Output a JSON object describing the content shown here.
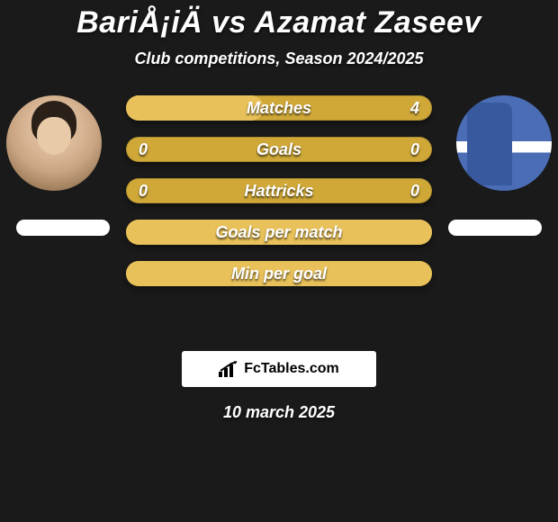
{
  "header": {
    "title": "BariÅ¡iÄ vs Azamat Zaseev",
    "title_fontsize": 34,
    "title_color": "#ffffff",
    "subtitle": "Club competitions, Season 2024/2025",
    "subtitle_fontsize": 18,
    "subtitle_color": "#ffffff"
  },
  "background_color": "#1a1a1a",
  "players": {
    "left": {
      "avatar_kind": "photo",
      "platform_color": "#ffffff"
    },
    "right": {
      "avatar_kind": "facebook-logo",
      "platform_color": "#ffffff"
    }
  },
  "bars": {
    "track_color": "#cfa838",
    "fill_color": "#e8c15a",
    "label_fontsize": 18,
    "value_fontsize": 18,
    "height": 28,
    "gap": 18,
    "items": [
      {
        "label": "Matches",
        "left": "",
        "right": "4",
        "fill_ratio": 0.45
      },
      {
        "label": "Goals",
        "left": "0",
        "right": "0",
        "fill_ratio": 0.0
      },
      {
        "label": "Hattricks",
        "left": "0",
        "right": "0",
        "fill_ratio": 0.0
      },
      {
        "label": "Goals per match",
        "left": "",
        "right": "",
        "fill_ratio": 1.0
      },
      {
        "label": "Min per goal",
        "left": "",
        "right": "",
        "fill_ratio": 1.0
      }
    ]
  },
  "source": {
    "label": "FcTables.com",
    "box_bg": "#ffffff",
    "text_color": "#000000"
  },
  "date": {
    "label": "10 march 2025",
    "fontsize": 18
  }
}
